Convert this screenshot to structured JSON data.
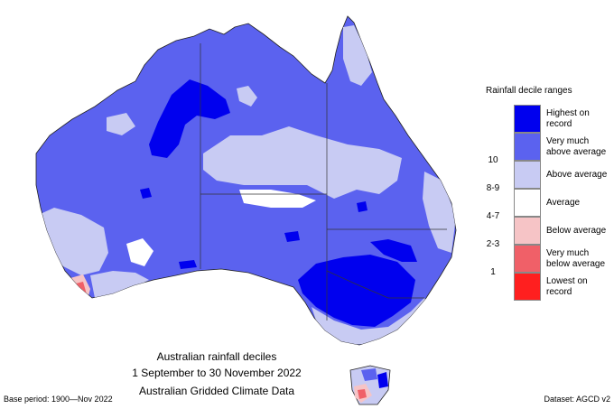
{
  "legend": {
    "title": "Rainfall decile ranges",
    "items": [
      {
        "label_lines": [
          "Highest on",
          "record"
        ],
        "decile": "",
        "color": "#0000ee"
      },
      {
        "label_lines": [
          "Very much",
          "above average"
        ],
        "decile": "10",
        "color": "#5b62ef"
      },
      {
        "label_lines": [
          "Above average"
        ],
        "decile": "8-9",
        "color": "#c8cbf3"
      },
      {
        "label_lines": [
          "Average"
        ],
        "decile": "4-7",
        "color": "#ffffff"
      },
      {
        "label_lines": [
          "Below average"
        ],
        "decile": "2-3",
        "color": "#f6c4c6"
      },
      {
        "label_lines": [
          "Very much",
          "below average"
        ],
        "decile": "1",
        "color": "#f06068"
      },
      {
        "label_lines": [
          "Lowest on",
          "record"
        ],
        "decile": "",
        "color": "#ff1f1f"
      }
    ]
  },
  "caption": {
    "line1": "Australian rainfall deciles",
    "line2": "1 September to 30 November 2022",
    "line3": "Australian Gridded Climate Data"
  },
  "footer": {
    "left": "Base period: 1900—Nov 2022",
    "right": "Dataset: AGCD v2"
  }
}
